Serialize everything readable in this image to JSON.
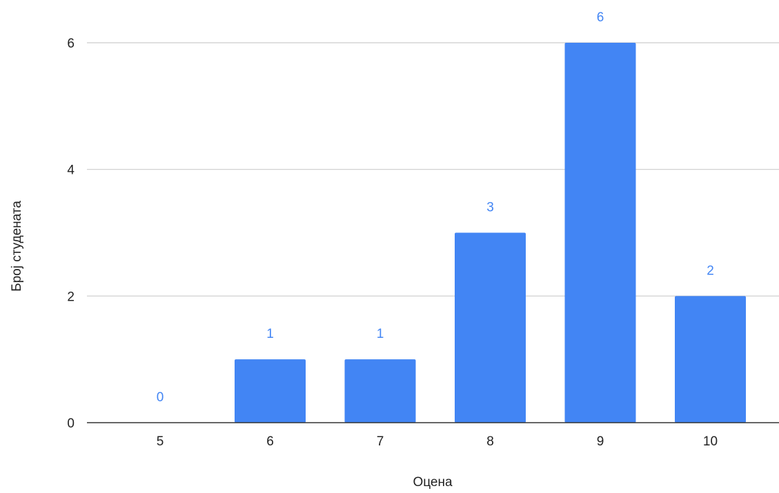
{
  "chart_data": {
    "type": "bar",
    "title": "",
    "xlabel": "Оцена",
    "ylabel": "Број студената",
    "categories": [
      "5",
      "6",
      "7",
      "8",
      "9",
      "10"
    ],
    "values": [
      0,
      1,
      1,
      3,
      6,
      2
    ],
    "data_labels": [
      "0",
      "1",
      "1",
      "3",
      "6",
      "2"
    ],
    "y_ticks": [
      "0",
      "2",
      "4",
      "6"
    ],
    "y_tick_values": [
      0,
      2,
      4,
      6
    ],
    "ylim": [
      0,
      6
    ],
    "grid": true,
    "legend": "none",
    "colors": {
      "bar": "#4285f4",
      "data_label": "#4285f4",
      "grid": "#cccccc",
      "axis": "#333333",
      "text": "#222222"
    }
  }
}
